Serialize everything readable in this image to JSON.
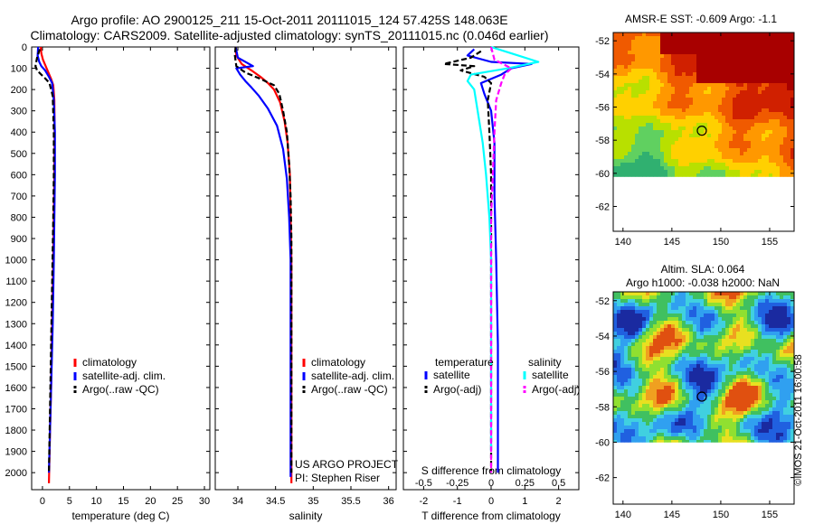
{
  "header": {
    "line1": "Argo profile: AO 2900125_211 15-Oct-2011 20111015_124 57.425S 148.063E",
    "line2": "Climatology: CARS2009. Satellite-adjusted climatology: synTS_20111015.nc (0.046d earlier)"
  },
  "stamp": "©IMOS 21-Oct-2011 16:00:58",
  "colors": {
    "climatology": "#ff0000",
    "satellite": "#0000ff",
    "argo": "#000000",
    "cyan": "#00ffff",
    "magenta": "#ff00ff"
  },
  "chart_data": [
    {
      "id": "temperature",
      "type": "line",
      "xlabel": "temperature (deg C)",
      "xlim": [
        -2,
        31
      ],
      "xticks": [
        0,
        5,
        10,
        15,
        20,
        25,
        30
      ],
      "ylim": [
        2080,
        0
      ],
      "yticks": [
        0,
        100,
        200,
        300,
        400,
        500,
        600,
        700,
        800,
        900,
        1000,
        1100,
        1200,
        1300,
        1400,
        1500,
        1600,
        1700,
        1800,
        1900,
        2000
      ],
      "legend": [
        "climatology",
        "satellite-adj. clim.",
        "Argo(..raw -QC)"
      ],
      "series": [
        {
          "name": "climatology",
          "style": "solid",
          "color": "#ff0000",
          "x": [
            -0.3,
            -0.2,
            0.1,
            0.6,
            1.1,
            1.6,
            2.0,
            2.2,
            2.25,
            2.2,
            2.1,
            2.0,
            1.8,
            1.6,
            1.4,
            1.2
          ],
          "y": [
            0,
            30,
            60,
            90,
            120,
            150,
            180,
            250,
            400,
            600,
            800,
            1000,
            1300,
            1600,
            1800,
            2050
          ]
        },
        {
          "name": "satellite-adj. clim.",
          "style": "solid",
          "color": "#0000ff",
          "x": [
            -0.8,
            -0.9,
            -0.6,
            -0.2,
            0.5,
            1.2,
            1.8,
            2.1,
            2.3,
            2.3,
            2.2,
            2.1,
            1.9,
            1.6,
            1.4,
            1.2
          ],
          "y": [
            0,
            40,
            70,
            90,
            110,
            140,
            170,
            250,
            400,
            600,
            800,
            1000,
            1300,
            1600,
            1800,
            2000
          ]
        },
        {
          "name": "Argo(..raw -QC)",
          "style": "dashed",
          "color": "#000000",
          "x": [
            -0.5,
            -1.0,
            -1.3,
            -1.0,
            -0.2,
            0.6,
            1.3,
            1.9,
            2.1,
            2.1,
            2.0,
            1.8,
            1.6,
            1.4,
            1.2
          ],
          "y": [
            10,
            50,
            90,
            110,
            130,
            150,
            170,
            230,
            400,
            600,
            800,
            1100,
            1400,
            1700,
            2000
          ]
        }
      ]
    },
    {
      "id": "salinity",
      "type": "line",
      "xlabel": "salinity",
      "xlim": [
        33.7,
        36.1
      ],
      "xticks": [
        34,
        34.5,
        35,
        35.5,
        36
      ],
      "ylim": [
        2080,
        0
      ],
      "yticks": [
        0,
        100,
        200,
        300,
        400,
        500,
        600,
        700,
        800,
        900,
        1000,
        1100,
        1200,
        1300,
        1400,
        1500,
        1600,
        1700,
        1800,
        1900,
        2000
      ],
      "legend": [
        "climatology",
        "satellite-adj. clim.",
        "Argo(..raw -QC)"
      ],
      "annotations": [
        "US ARGO PROJECT",
        "PI: Stephen Riser"
      ],
      "series": [
        {
          "name": "climatology",
          "style": "solid",
          "color": "#ff0000",
          "x": [
            33.97,
            33.98,
            34.05,
            34.18,
            34.3,
            34.4,
            34.48,
            34.56,
            34.62,
            34.66,
            34.69,
            34.7,
            34.71,
            34.71,
            34.71,
            34.71
          ],
          "y": [
            0,
            40,
            80,
            110,
            140,
            170,
            200,
            260,
            350,
            450,
            600,
            800,
            1000,
            1400,
            1800,
            2050
          ]
        },
        {
          "name": "satellite-adj. clim.",
          "style": "solid",
          "color": "#0000ff",
          "x": [
            33.97,
            34.0,
            34.2,
            33.98,
            34.03,
            34.1,
            34.18,
            34.28,
            34.4,
            34.52,
            34.6,
            34.65,
            34.68,
            34.7,
            34.7,
            34.7,
            34.7
          ],
          "y": [
            0,
            50,
            90,
            100,
            130,
            160,
            190,
            230,
            290,
            370,
            480,
            620,
            800,
            1000,
            1400,
            1800,
            2020
          ]
        },
        {
          "name": "Argo(..raw -QC)",
          "style": "dashed",
          "color": "#000000",
          "x": [
            33.97,
            33.96,
            33.98,
            34.1,
            34.3,
            34.48,
            34.55,
            34.6,
            34.65,
            34.68,
            34.7,
            34.71,
            34.71,
            34.71,
            34.71
          ],
          "y": [
            0,
            40,
            90,
            120,
            150,
            180,
            220,
            300,
            400,
            550,
            700,
            900,
            1200,
            1600,
            2000
          ]
        }
      ]
    },
    {
      "id": "difference",
      "type": "line",
      "xlabel": "T difference from climatology",
      "xlabel_top": "S difference from climatology",
      "xlim": [
        -2.6,
        2.6
      ],
      "xticks": [
        -2,
        -1,
        0,
        1,
        2
      ],
      "xticks_top": [
        -0.5,
        -0.25,
        0,
        0.25,
        0.5
      ],
      "ylim": [
        2080,
        0
      ],
      "yticks": [
        0,
        100,
        200,
        300,
        400,
        500,
        600,
        700,
        800,
        900,
        1000,
        1100,
        1200,
        1300,
        1400,
        1500,
        1600,
        1700,
        1800,
        1900,
        2000
      ],
      "legend_groups": [
        "temperature",
        "salinity"
      ],
      "legend": [
        "satellite",
        "Argo(-adj)",
        "satellite",
        "Argo(-adj)"
      ],
      "series": [
        {
          "name": "satellite",
          "group": "temperature",
          "style": "solid",
          "color": "#0000ff",
          "x": [
            -0.5,
            -0.7,
            0.0,
            1.2,
            0.6,
            0.3,
            -0.3,
            -0.2,
            0.0,
            0.1,
            0.1,
            0.15,
            0.2,
            0.2,
            0.2
          ],
          "y": [
            10,
            40,
            70,
            80,
            100,
            130,
            170,
            220,
            300,
            450,
            700,
            1000,
            1400,
            1800,
            2000
          ]
        },
        {
          "name": "Argo(-adj)",
          "group": "temperature",
          "style": "dashed",
          "color": "#000000",
          "x": [
            -0.3,
            -0.6,
            -1.4,
            -0.5,
            -0.9,
            -0.2,
            0.0,
            -0.1,
            -0.05,
            0.0,
            0.0,
            0.0,
            0.0,
            0.0
          ],
          "y": [
            20,
            50,
            80,
            90,
            110,
            140,
            170,
            250,
            400,
            600,
            800,
            1100,
            1500,
            2000
          ]
        },
        {
          "name": "satellite",
          "group": "salinity",
          "style": "solid",
          "color": "#00ffff",
          "x": [
            0.0,
            0.6,
            1.4,
            0.5,
            -0.6,
            -0.7,
            -0.5,
            -0.4,
            -0.25,
            -0.15,
            -0.05,
            0.0,
            0.0,
            0.0
          ],
          "y": [
            0,
            30,
            70,
            100,
            130,
            160,
            200,
            300,
            450,
            600,
            800,
            1000,
            1400,
            1900
          ]
        },
        {
          "name": "Argo(-adj)",
          "group": "salinity",
          "style": "dashed",
          "color": "#ff00ff",
          "x": [
            0.0,
            0.1,
            0.6,
            0.4,
            0.3,
            0.15,
            0.1,
            0.05,
            0.0,
            0.0,
            0.0,
            0.0
          ],
          "y": [
            0,
            60,
            100,
            130,
            170,
            250,
            400,
            600,
            800,
            1100,
            1500,
            2000
          ]
        }
      ]
    },
    {
      "id": "sst_map",
      "type": "heatmap",
      "title": "AMSR-E SST: -0.609 Argo: -1.1",
      "xlim": [
        139,
        157.5
      ],
      "ylim": [
        -63.5,
        -51.5
      ],
      "xticks": [
        140,
        145,
        150,
        155
      ],
      "yticks": [
        -52,
        -54,
        -56,
        -58,
        -60,
        -62
      ],
      "data_extent": {
        "lon": [
          139,
          157.5
        ],
        "lat": [
          -60.2,
          -51.5
        ]
      },
      "marker": {
        "lon": 148.063,
        "lat": -57.425
      }
    },
    {
      "id": "sla_map",
      "type": "heatmap",
      "title": "Altim. SLA: 0.064",
      "subtitle": "Argo h1000: -0.038 h2000: NaN",
      "xlim": [
        139,
        157.5
      ],
      "ylim": [
        -63.5,
        -51.5
      ],
      "xticks": [
        140,
        145,
        150,
        155
      ],
      "yticks": [
        -52,
        -54,
        -56,
        -58,
        -60,
        -62
      ],
      "data_extent": {
        "lon": [
          139,
          157.5
        ],
        "lat": [
          -60,
          -51.5
        ]
      },
      "marker": {
        "lon": 148.063,
        "lat": -57.425
      }
    }
  ]
}
